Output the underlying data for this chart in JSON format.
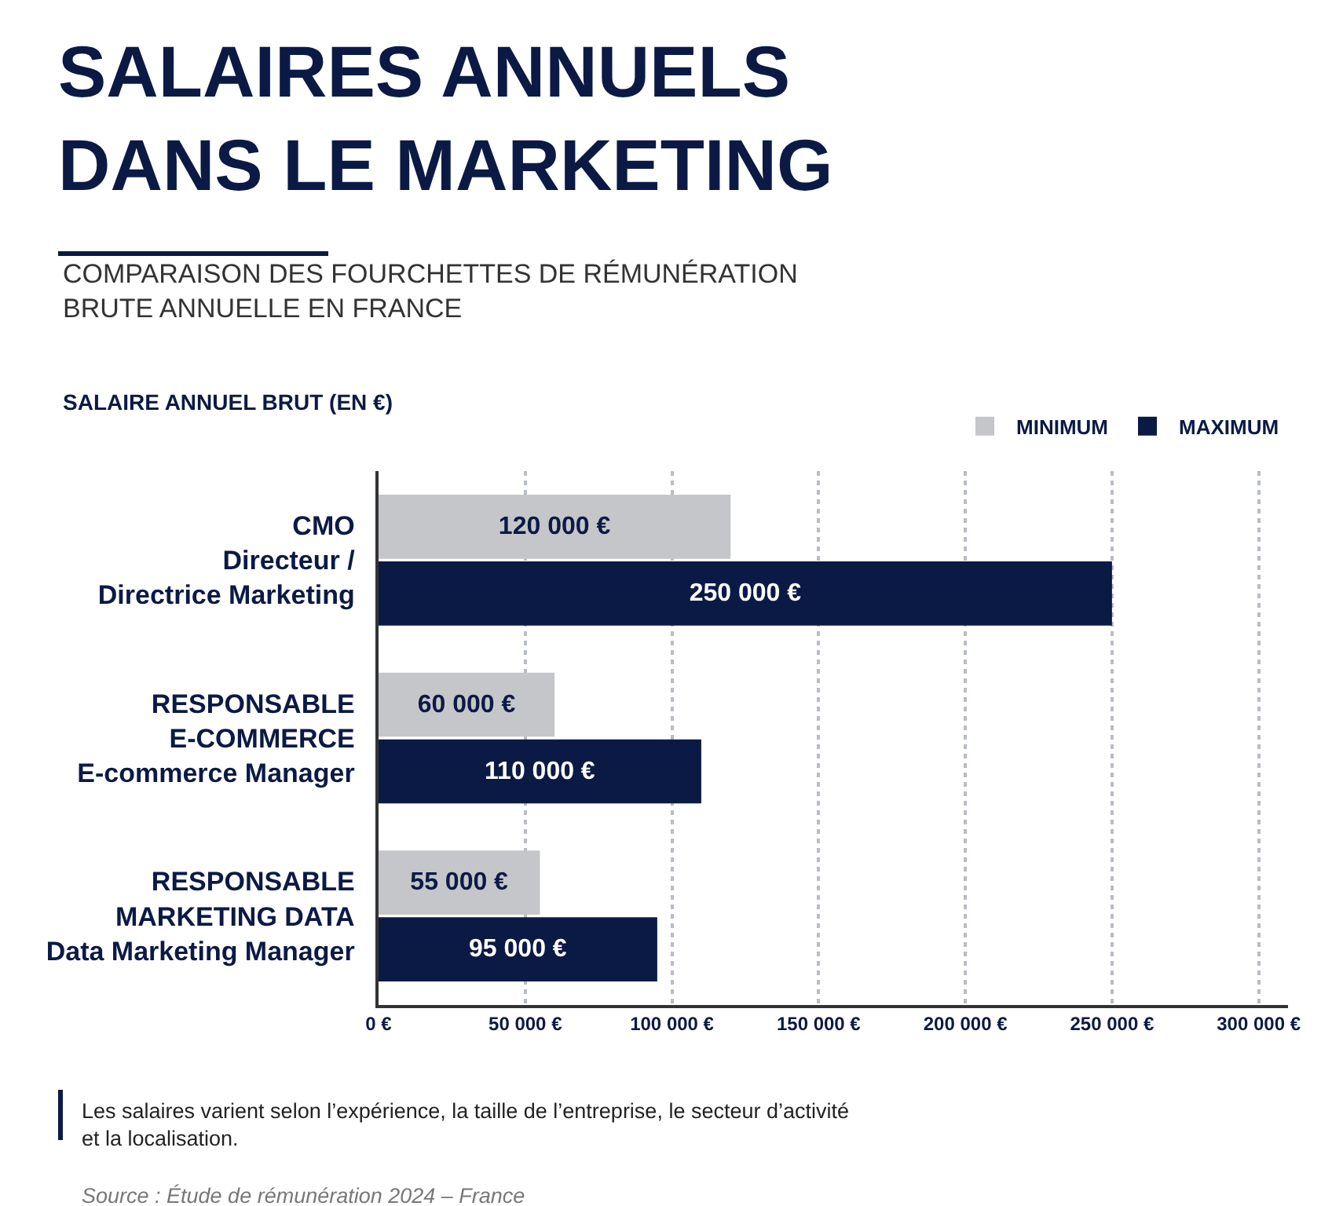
{
  "chart_data": {
    "type": "bar",
    "orientation": "horizontal",
    "title": "SALAIRES ANNUELS\nDANS LE MARKETING",
    "subtitle": "COMPARAISON DES FOURCHETTES DE RÉMUNÉRATION\nBRUTE ANNUELLE EN FRANCE",
    "ylabel": "SALAIRE ANNUEL BRUT (EN €)",
    "categories": [
      "CMO\nDirecteur /\nDirectrice Marketing",
      "RESPONSABLE\nE-COMMERCE\nE-commerce Manager",
      "RESPONSABLE\nMARKETING DATA\nData Marketing Manager"
    ],
    "series": [
      {
        "name": "MINIMUM",
        "color": "#c4c6c9",
        "values": [
          120000,
          60000,
          55000
        ],
        "value_labels": [
          "120 000 €",
          "60 000 €",
          "55 000 €"
        ]
      },
      {
        "name": "MAXIMUM",
        "color": "#0b1a45",
        "values": [
          250000,
          110000,
          95000
        ],
        "value_labels": [
          "250 000 €",
          "110 000 €",
          "95 000 €"
        ]
      }
    ],
    "xlim": [
      0,
      310000
    ],
    "xticks": [
      {
        "value": 0,
        "label": "0 €"
      },
      {
        "value": 50000,
        "label": "50 000 €"
      },
      {
        "value": 100000,
        "label": "100 000 €"
      },
      {
        "value": 150000,
        "label": "150 000 €"
      },
      {
        "value": 200000,
        "label": "200 000 €"
      },
      {
        "value": 250000,
        "label": "250 000 €"
      },
      {
        "value": 300000,
        "label": "300 000 €"
      }
    ],
    "grid": "x",
    "legend": "top right",
    "annotations": [
      "Les salaires varient selon l’expérience, la taille de l’entreprise, le secteur d’activité\net la localisation.",
      "Source : Étude de rémunération 2024 – France"
    ]
  }
}
